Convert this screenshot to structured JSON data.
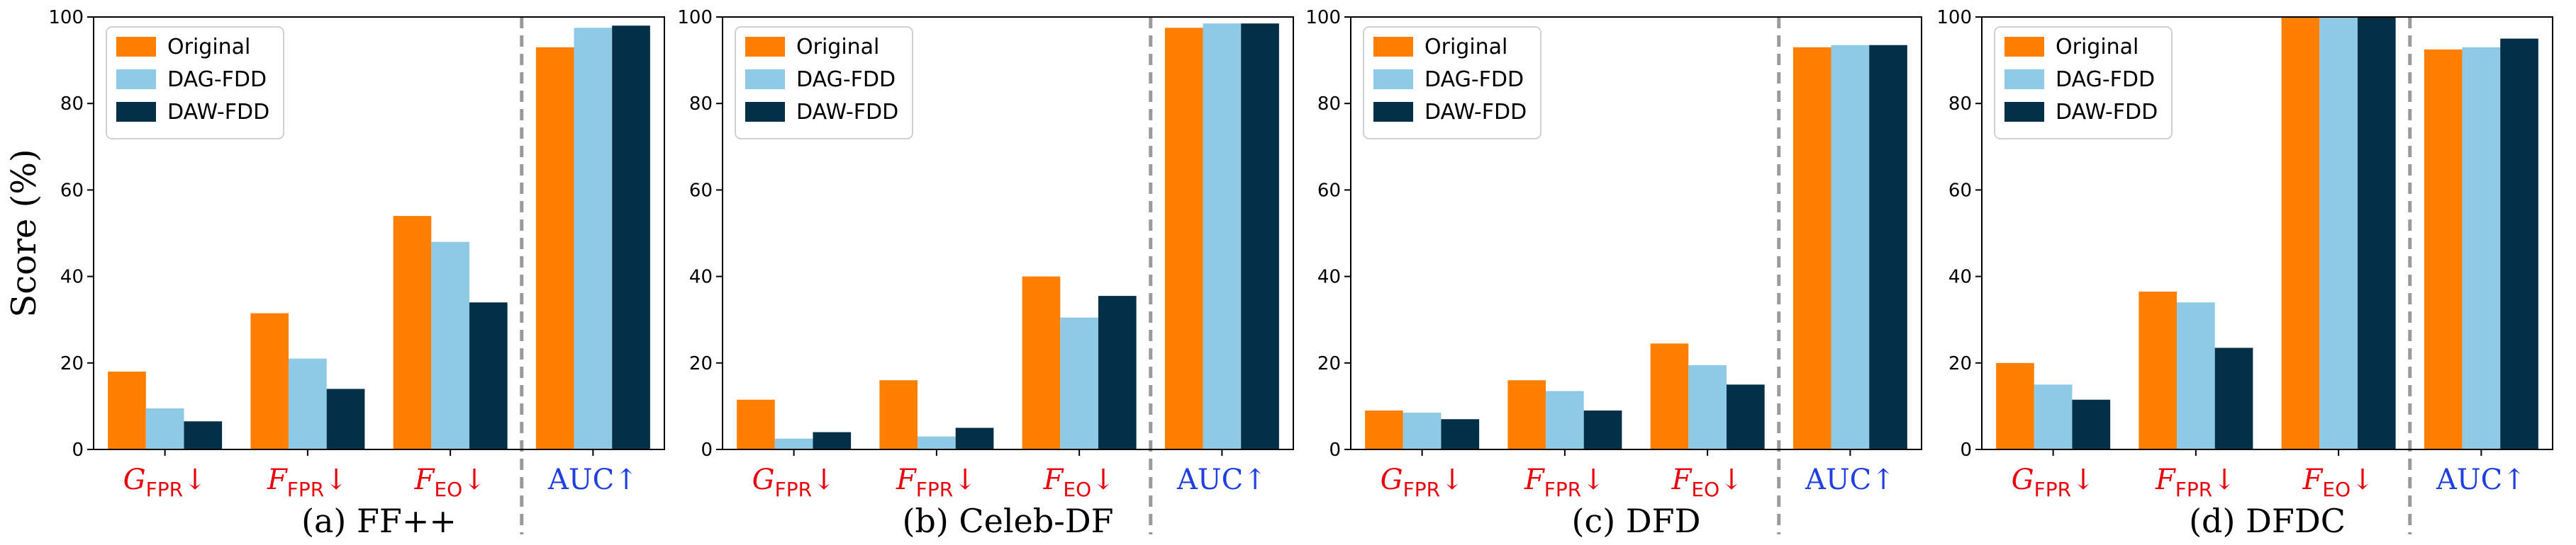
{
  "chart_data": [
    {
      "type": "bar",
      "caption": "(a) FF++",
      "ylabel": "Score (%)",
      "ylim": [
        0,
        100
      ],
      "yticks": [
        0,
        20,
        40,
        60,
        80,
        100
      ],
      "categories": [
        {
          "base": "G",
          "sub": "FPR",
          "arrow": "↓"
        },
        {
          "base": "F",
          "sub": "FPR",
          "arrow": "↓"
        },
        {
          "base": "F",
          "sub": "EO",
          "arrow": "↓"
        },
        {
          "base": "AUC",
          "sub": "",
          "arrow": "↑"
        }
      ],
      "series": [
        {
          "name": "Original",
          "color": "#ff8000",
          "values": [
            18,
            31.5,
            54,
            93
          ]
        },
        {
          "name": "DAG-FDD",
          "color": "#8ecae6",
          "values": [
            9.5,
            21,
            48,
            97.5
          ]
        },
        {
          "name": "DAW-FDD",
          "color": "#023047",
          "values": [
            6.5,
            14,
            34,
            98
          ]
        }
      ],
      "legend": "top-left",
      "separator": "dashed line before AUC"
    },
    {
      "type": "bar",
      "caption": "(b) Celeb-DF",
      "ylabel": "",
      "ylim": [
        0,
        100
      ],
      "yticks": [
        0,
        20,
        40,
        60,
        80,
        100
      ],
      "categories": [
        {
          "base": "G",
          "sub": "FPR",
          "arrow": "↓"
        },
        {
          "base": "F",
          "sub": "FPR",
          "arrow": "↓"
        },
        {
          "base": "F",
          "sub": "EO",
          "arrow": "↓"
        },
        {
          "base": "AUC",
          "sub": "",
          "arrow": "↑"
        }
      ],
      "series": [
        {
          "name": "Original",
          "color": "#ff8000",
          "values": [
            11.5,
            16,
            40,
            97.5
          ]
        },
        {
          "name": "DAG-FDD",
          "color": "#8ecae6",
          "values": [
            2.5,
            3,
            30.5,
            98.5
          ]
        },
        {
          "name": "DAW-FDD",
          "color": "#023047",
          "values": [
            4,
            5,
            35.5,
            98.5
          ]
        }
      ],
      "legend": "top-left",
      "separator": "dashed line before AUC"
    },
    {
      "type": "bar",
      "caption": "(c) DFD",
      "ylabel": "",
      "ylim": [
        0,
        100
      ],
      "yticks": [
        0,
        20,
        40,
        60,
        80,
        100
      ],
      "categories": [
        {
          "base": "G",
          "sub": "FPR",
          "arrow": "↓"
        },
        {
          "base": "F",
          "sub": "FPR",
          "arrow": "↓"
        },
        {
          "base": "F",
          "sub": "EO",
          "arrow": "↓"
        },
        {
          "base": "AUC",
          "sub": "",
          "arrow": "↑"
        }
      ],
      "series": [
        {
          "name": "Original",
          "color": "#ff8000",
          "values": [
            9,
            16,
            24.5,
            93
          ]
        },
        {
          "name": "DAG-FDD",
          "color": "#8ecae6",
          "values": [
            8.5,
            13.5,
            19.5,
            93.5
          ]
        },
        {
          "name": "DAW-FDD",
          "color": "#023047",
          "values": [
            7,
            9,
            15,
            93.5
          ]
        }
      ],
      "legend": "top-left",
      "separator": "dashed line before AUC"
    },
    {
      "type": "bar",
      "caption": "(d) DFDC",
      "ylabel": "",
      "ylim": [
        0,
        100
      ],
      "yticks": [
        0,
        20,
        40,
        60,
        80,
        100
      ],
      "categories": [
        {
          "base": "G",
          "sub": "FPR",
          "arrow": "↓"
        },
        {
          "base": "F",
          "sub": "FPR",
          "arrow": "↓"
        },
        {
          "base": "F",
          "sub": "EO",
          "arrow": "↓"
        },
        {
          "base": "AUC",
          "sub": "",
          "arrow": "↑"
        }
      ],
      "series": [
        {
          "name": "Original",
          "color": "#ff8000",
          "values": [
            20,
            36.5,
            100,
            92.5
          ]
        },
        {
          "name": "DAG-FDD",
          "color": "#8ecae6",
          "values": [
            15,
            34,
            100,
            93
          ]
        },
        {
          "name": "DAW-FDD",
          "color": "#023047",
          "values": [
            11.5,
            23.5,
            100,
            95
          ]
        }
      ],
      "legend": "top-left",
      "separator": "dashed line before AUC"
    }
  ]
}
